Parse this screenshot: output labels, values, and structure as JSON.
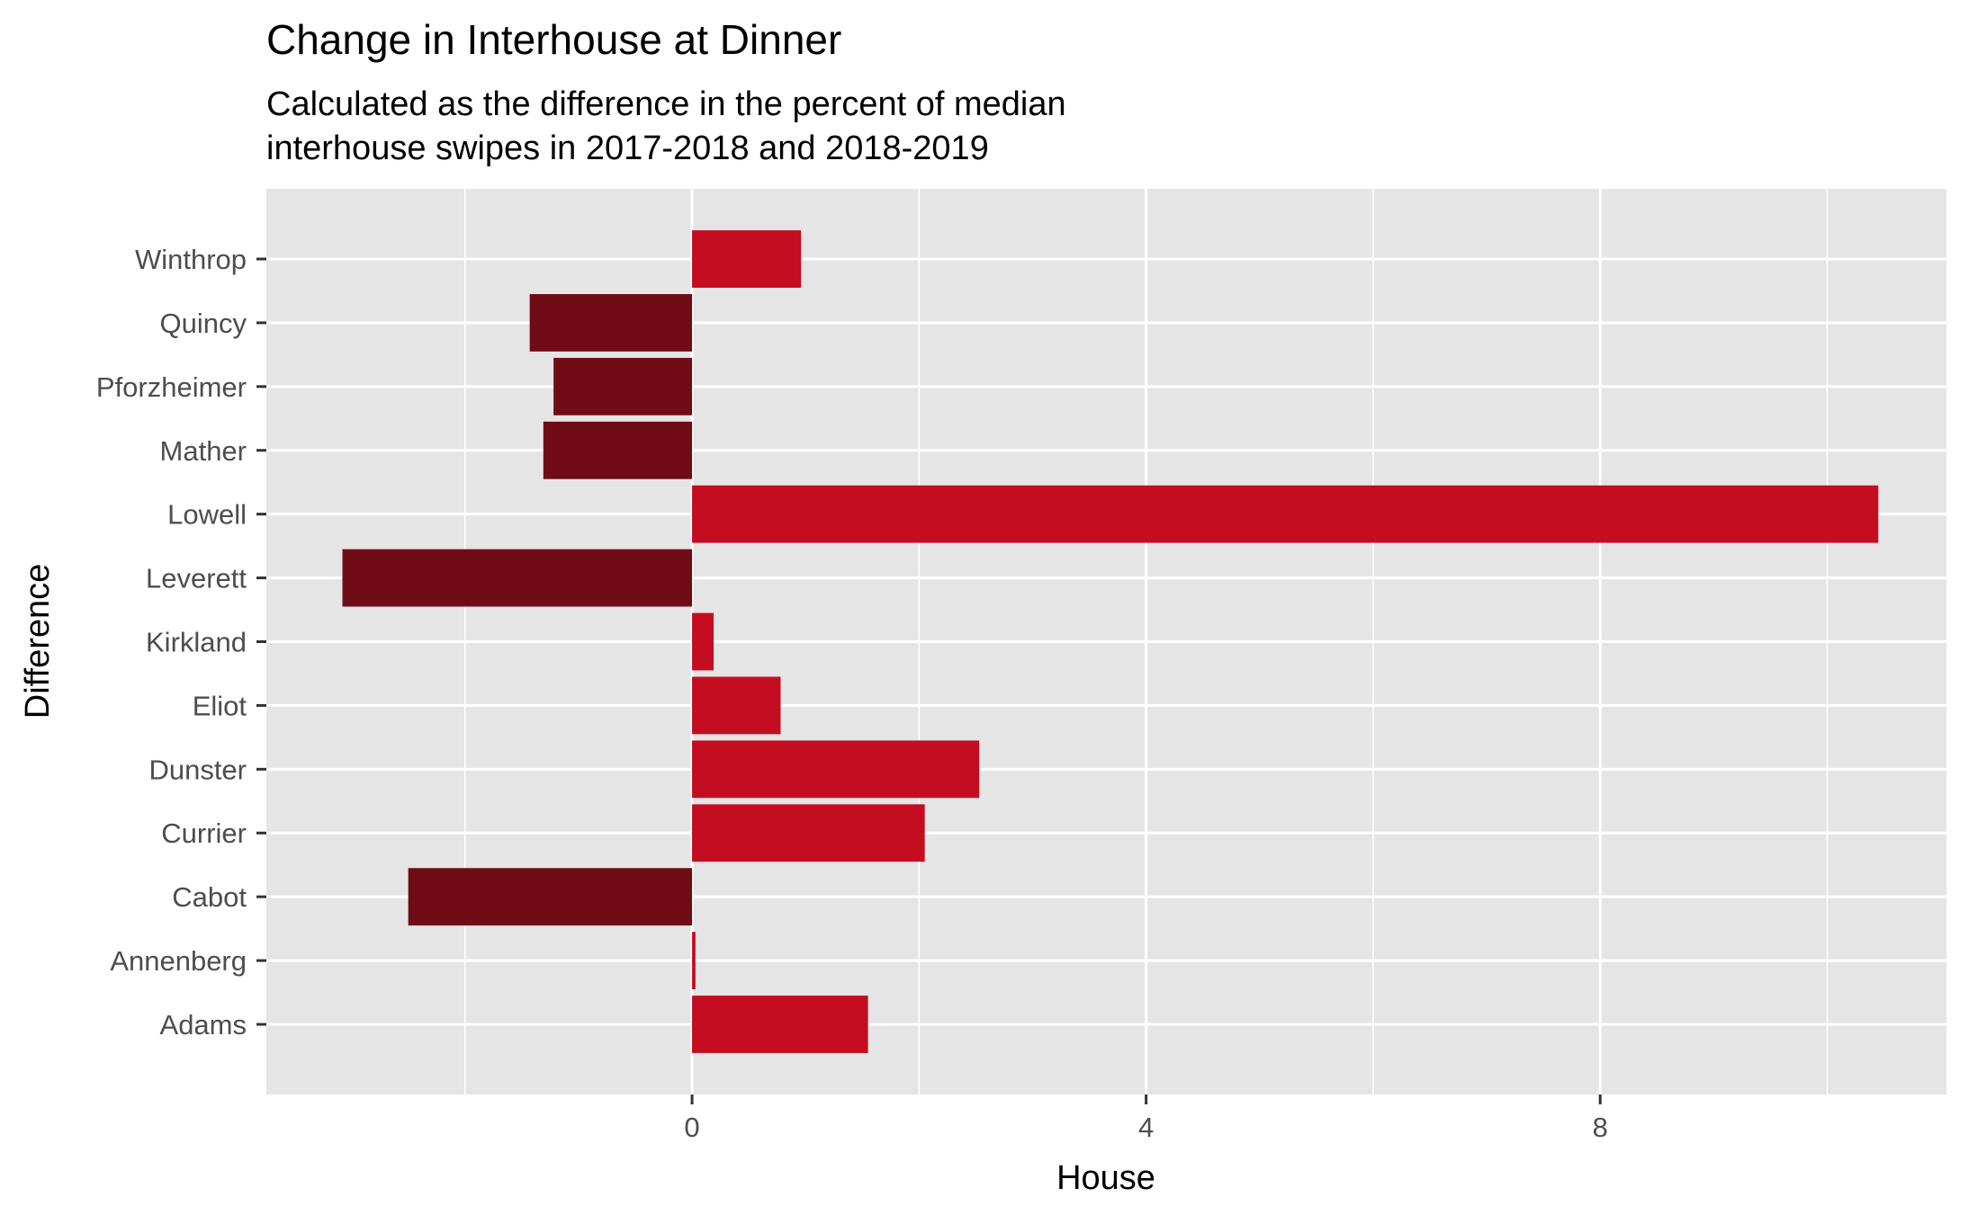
{
  "chart_data": {
    "type": "bar",
    "orientation": "horizontal",
    "title": "Change in Interhouse at Dinner",
    "subtitle": [
      "Calculated as the difference in the percent of median",
      "interhouse swipes in 2017-2018 and 2018-2019"
    ],
    "xlabel": "House",
    "ylabel": "Difference",
    "categories": [
      "Adams",
      "Annenberg",
      "Cabot",
      "Currier",
      "Dunster",
      "Eliot",
      "Kirkland",
      "Leverett",
      "Lowell",
      "Mather",
      "Pforzheimer",
      "Quincy",
      "Winthrop"
    ],
    "values": [
      1.55,
      0.03,
      -2.5,
      2.05,
      2.53,
      0.78,
      0.19,
      -3.08,
      10.45,
      -1.31,
      -1.22,
      -1.43,
      0.96
    ],
    "xlim": [
      -3.75,
      11.05
    ],
    "xticks": [
      0,
      4,
      8
    ],
    "xminor": [
      -2,
      2,
      6,
      10
    ],
    "grid": true,
    "legend": "none",
    "colors": {
      "positive": "#c40d20",
      "negative": "#700c16",
      "panel": "#e5e5e5",
      "grid": "#ffffff",
      "tick_text": "#4d4d4d",
      "tick_mark": "#333333"
    }
  }
}
